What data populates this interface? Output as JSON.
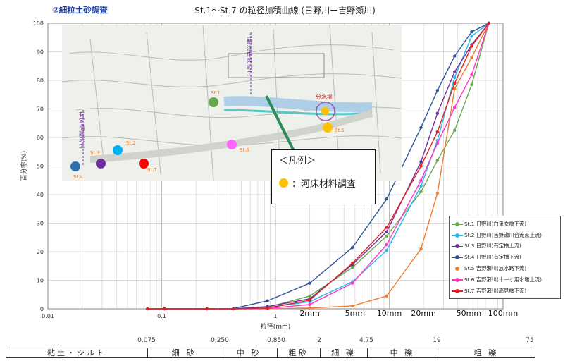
{
  "heading": "②細粒土砂調査",
  "chart_data": {
    "type": "line",
    "title": "St.1～St.7 の粒径加積曲線 (日野川ー吉野瀬川)",
    "xlabel": "粒径(mm)",
    "ylabel": "百分率(%)",
    "xscale": "log",
    "xlim": [
      0.01,
      100
    ],
    "ylim": [
      0,
      100
    ],
    "x_tick_labels": [
      "0.01",
      "0.1",
      "1"
    ],
    "y_tick_labels": [
      "0",
      "10",
      "20",
      "30",
      "40",
      "50",
      "60",
      "70",
      "80",
      "90",
      "100"
    ],
    "size_labels": [
      "2mm",
      "5mm",
      "10mm",
      "20mm",
      "50mm",
      "100mm"
    ],
    "x": [
      0.075,
      0.106,
      0.25,
      0.425,
      0.85,
      2.0,
      4.75,
      9.5,
      19,
      26.5,
      37.5,
      53,
      75
    ],
    "series": [
      {
        "name": "St.1 日野川(白鬼女橋下流)",
        "color": "#6aa84f",
        "values": [
          0,
          0,
          0,
          0,
          0.5,
          4.5,
          14.5,
          25.5,
          41,
          52,
          62.5,
          78.5,
          100
        ]
      },
      {
        "name": "St.2 日野川(吉野瀬川合流点上流)",
        "color": "#29b6e8",
        "values": [
          0,
          0,
          0,
          0,
          0.4,
          2.5,
          9.5,
          20.5,
          43,
          59,
          81,
          95.5,
          100
        ]
      },
      {
        "name": "St.3 日野川(有定橋上流)",
        "color": "#7030a0",
        "values": [
          0,
          0,
          0,
          0,
          0.8,
          3.5,
          15.5,
          27,
          51.5,
          68.5,
          83,
          92.5,
          100
        ]
      },
      {
        "name": "St.4 日野川(有定橋下流)",
        "color": "#2f5597",
        "values": [
          0,
          0,
          0,
          0.1,
          2.8,
          9,
          21.5,
          38.5,
          63.5,
          76.5,
          88.5,
          97,
          100
        ]
      },
      {
        "name": "St.5 吉野瀬川(放水路下流)",
        "color": "#ed7d31",
        "values": [
          0,
          0,
          0,
          0,
          0,
          0.3,
          1,
          4.5,
          21,
          40.5,
          77,
          88,
          100
        ]
      },
      {
        "name": "St.6 吉野瀬川(十一ヶ用水堰上流)",
        "color": "#ff33cc",
        "values": [
          0,
          0,
          0,
          0,
          0.1,
          1.5,
          9,
          22.5,
          45,
          58,
          70.5,
          82,
          100
        ]
      },
      {
        "name": "St.7 吉野瀬川(高見橋下流)",
        "color": "#e02020",
        "values": [
          0,
          0,
          0,
          0,
          0.3,
          3,
          16,
          28.5,
          50,
          62,
          79,
          92,
          100
        ]
      }
    ]
  },
  "map": {
    "station_labels": [
      "St.1",
      "St.2",
      "St.3",
      "St.4",
      "St.5",
      "St.6",
      "St.7"
    ],
    "place_labels": [
      "上鯖江床固め工",
      "分水堰",
      "有定橋護床工"
    ],
    "legend_title": "＜凡例＞",
    "legend_item": "：河床材料調査",
    "legend_color": "#ffc000"
  },
  "classes": {
    "boundaries": [
      "0.075",
      "0.250",
      "0.850",
      "2",
      "4.75",
      "19",
      "75"
    ],
    "names": [
      "粘土・シルト",
      "細 砂",
      "中 砂",
      "粗砂",
      "細 礫",
      "中 礫",
      "粗 礫"
    ]
  }
}
